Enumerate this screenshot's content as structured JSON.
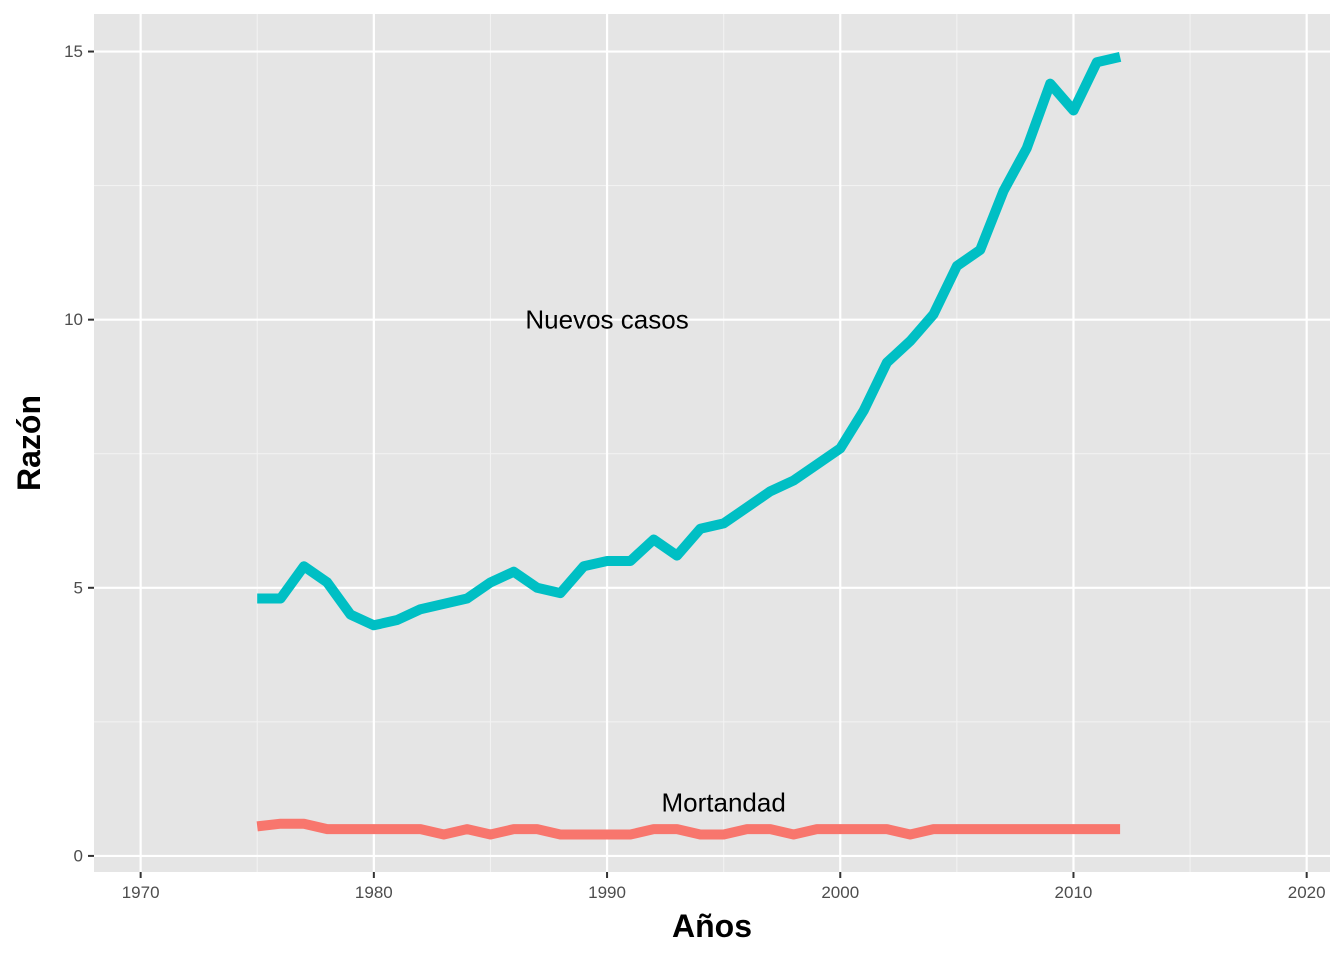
{
  "chart_data": {
    "type": "line",
    "title": "",
    "xlabel": "Años",
    "ylabel": "Razón",
    "xlim": [
      1968,
      2021
    ],
    "ylim": [
      -0.3,
      15.7
    ],
    "x_ticks": [
      1970,
      1980,
      1990,
      2000,
      2010,
      2020
    ],
    "x_tick_labels": [
      "1970",
      "1980",
      "1990",
      "2000",
      "2010",
      "2020"
    ],
    "y_ticks": [
      0,
      5,
      10,
      15
    ],
    "y_tick_labels": [
      "0",
      "5",
      "10",
      "15"
    ],
    "grid": true,
    "legend": "none",
    "x": [
      1975,
      1976,
      1977,
      1978,
      1979,
      1980,
      1981,
      1982,
      1983,
      1984,
      1985,
      1986,
      1987,
      1988,
      1989,
      1990,
      1991,
      1992,
      1993,
      1994,
      1995,
      1996,
      1997,
      1998,
      1999,
      2000,
      2001,
      2002,
      2003,
      2004,
      2005,
      2006,
      2007,
      2008,
      2009,
      2010,
      2011,
      2012
    ],
    "series": [
      {
        "color": "#00BFC4",
        "values": [
          4.8,
          4.8,
          5.4,
          5.1,
          4.5,
          4.3,
          4.4,
          4.6,
          4.7,
          4.8,
          5.1,
          5.3,
          5.0,
          4.9,
          5.4,
          5.5,
          5.5,
          5.9,
          5.6,
          6.1,
          6.2,
          6.5,
          6.8,
          7.0,
          7.3,
          7.6,
          8.3,
          9.2,
          9.6,
          10.1,
          11.0,
          11.3,
          12.4,
          13.2,
          14.4,
          13.9,
          14.8,
          14.9
        ]
      },
      {
        "color": "#F8766D",
        "values": [
          0.55,
          0.6,
          0.6,
          0.5,
          0.5,
          0.5,
          0.5,
          0.5,
          0.4,
          0.5,
          0.4,
          0.5,
          0.5,
          0.4,
          0.4,
          0.4,
          0.4,
          0.5,
          0.5,
          0.4,
          0.4,
          0.5,
          0.5,
          0.4,
          0.5,
          0.5,
          0.5,
          0.5,
          0.4,
          0.5,
          0.5,
          0.5,
          0.5,
          0.5,
          0.5,
          0.5,
          0.5,
          0.5
        ]
      }
    ],
    "annotations": [
      {
        "text": "Nuevos casos",
        "x": 1990,
        "y": 10
      },
      {
        "text": "Mortandad",
        "x": 1995,
        "y": 1
      }
    ],
    "colors": {
      "panel": "#E5E5E5",
      "grid_major": "#FFFFFF",
      "nuevos_casos": "#00BFC4",
      "mortandad": "#F8766D"
    }
  }
}
